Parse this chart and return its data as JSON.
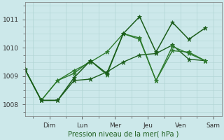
{
  "bg_color": "#cce8ea",
  "grid_color": "#b0d4d4",
  "line_color_dark": "#1a5c1a",
  "line_color_mid": "#2d7a2d",
  "xlabel": "Pression niveau de la mer( hPa )",
  "yticks": [
    1008,
    1009,
    1010,
    1011
  ],
  "xtick_labels": [
    "Dim",
    "Lun",
    "Mer",
    "Jeu",
    "Ven",
    "Sam"
  ],
  "xtick_positions": [
    1.5,
    3.5,
    5.5,
    7.5,
    9.5,
    11.5
  ],
  "minor_xtick_positions": [
    0.5,
    1.5,
    2.5,
    3.5,
    4.5,
    5.5,
    6.5,
    7.5,
    8.5,
    9.5,
    10.5,
    11.5
  ],
  "xlim": [
    0,
    12
  ],
  "ylim": [
    1007.6,
    1011.6
  ],
  "series": [
    [
      1009.25,
      1008.15,
      1008.15,
      1008.85,
      1008.9,
      1009.15,
      1009.5,
      1009.75,
      1009.8,
      1010.1,
      1009.6,
      1009.55
    ],
    [
      1009.25,
      1008.15,
      1008.85,
      1009.2,
      1009.5,
      1009.85,
      1010.5,
      1010.3,
      1008.85,
      1009.9,
      1009.85,
      1009.55
    ],
    [
      1009.25,
      1008.15,
      1008.85,
      1009.1,
      1009.55,
      1009.05,
      1010.5,
      1010.35,
      1008.85,
      1010.05,
      1009.8,
      1009.55
    ],
    [
      1009.25,
      1008.15,
      1008.15,
      1008.95,
      1009.55,
      1009.1,
      1010.5,
      1011.1,
      1009.85,
      1010.9,
      1010.3,
      1010.7
    ]
  ],
  "x_data": [
    0,
    1,
    2,
    3,
    4,
    5,
    6,
    7,
    8,
    9,
    10,
    11
  ],
  "marker": "*",
  "marker_size": 4.5,
  "linewidths": [
    1.0,
    1.0,
    1.0,
    1.1
  ]
}
